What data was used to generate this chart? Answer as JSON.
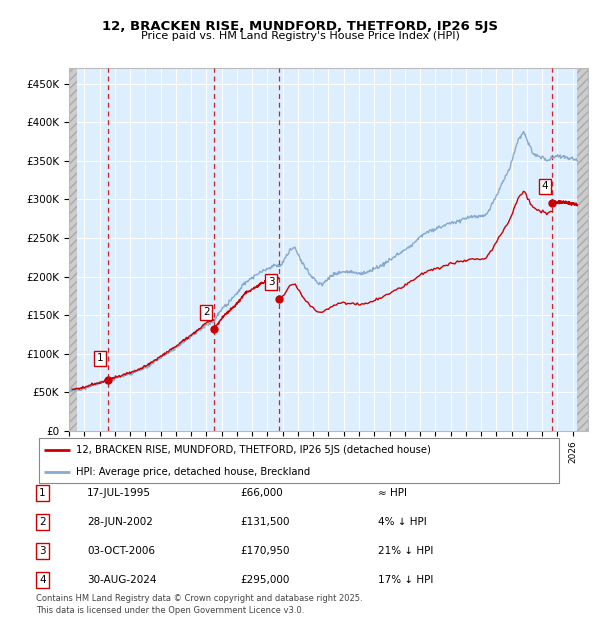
{
  "title1": "12, BRACKEN RISE, MUNDFORD, THETFORD, IP26 5JS",
  "title2": "Price paid vs. HM Land Registry's House Price Index (HPI)",
  "ylim": [
    0,
    470000
  ],
  "yticks": [
    0,
    50000,
    100000,
    150000,
    200000,
    250000,
    300000,
    350000,
    400000,
    450000
  ],
  "ytick_labels": [
    "£0",
    "£50K",
    "£100K",
    "£150K",
    "£200K",
    "£250K",
    "£300K",
    "£350K",
    "£400K",
    "£450K"
  ],
  "xlim_start": 1993.0,
  "xlim_end": 2027.0,
  "hatch_left_end": 1993.5,
  "hatch_right_start": 2026.3,
  "sales": [
    {
      "date_num": 1995.54,
      "price": 66000,
      "label": "1"
    },
    {
      "date_num": 2002.49,
      "price": 131500,
      "label": "2"
    },
    {
      "date_num": 2006.75,
      "price": 170950,
      "label": "3"
    },
    {
      "date_num": 2024.66,
      "price": 295000,
      "label": "4"
    }
  ],
  "legend_line1": "12, BRACKEN RISE, MUNDFORD, THETFORD, IP26 5JS (detached house)",
  "legend_line2": "HPI: Average price, detached house, Breckland",
  "table_rows": [
    {
      "num": "1",
      "date": "17-JUL-1995",
      "price": "£66,000",
      "hpi": "≈ HPI"
    },
    {
      "num": "2",
      "date": "28-JUN-2002",
      "price": "£131,500",
      "hpi": "4% ↓ HPI"
    },
    {
      "num": "3",
      "date": "03-OCT-2006",
      "price": "£170,950",
      "hpi": "21% ↓ HPI"
    },
    {
      "num": "4",
      "date": "30-AUG-2024",
      "price": "£295,000",
      "hpi": "17% ↓ HPI"
    }
  ],
  "footer": "Contains HM Land Registry data © Crown copyright and database right 2025.\nThis data is licensed under the Open Government Licence v3.0.",
  "line_color_red": "#cc0000",
  "line_color_blue": "#88aacc",
  "plot_bg": "#ddeeff",
  "hatch_color": "#cccccc",
  "grid_color": "#ffffff"
}
